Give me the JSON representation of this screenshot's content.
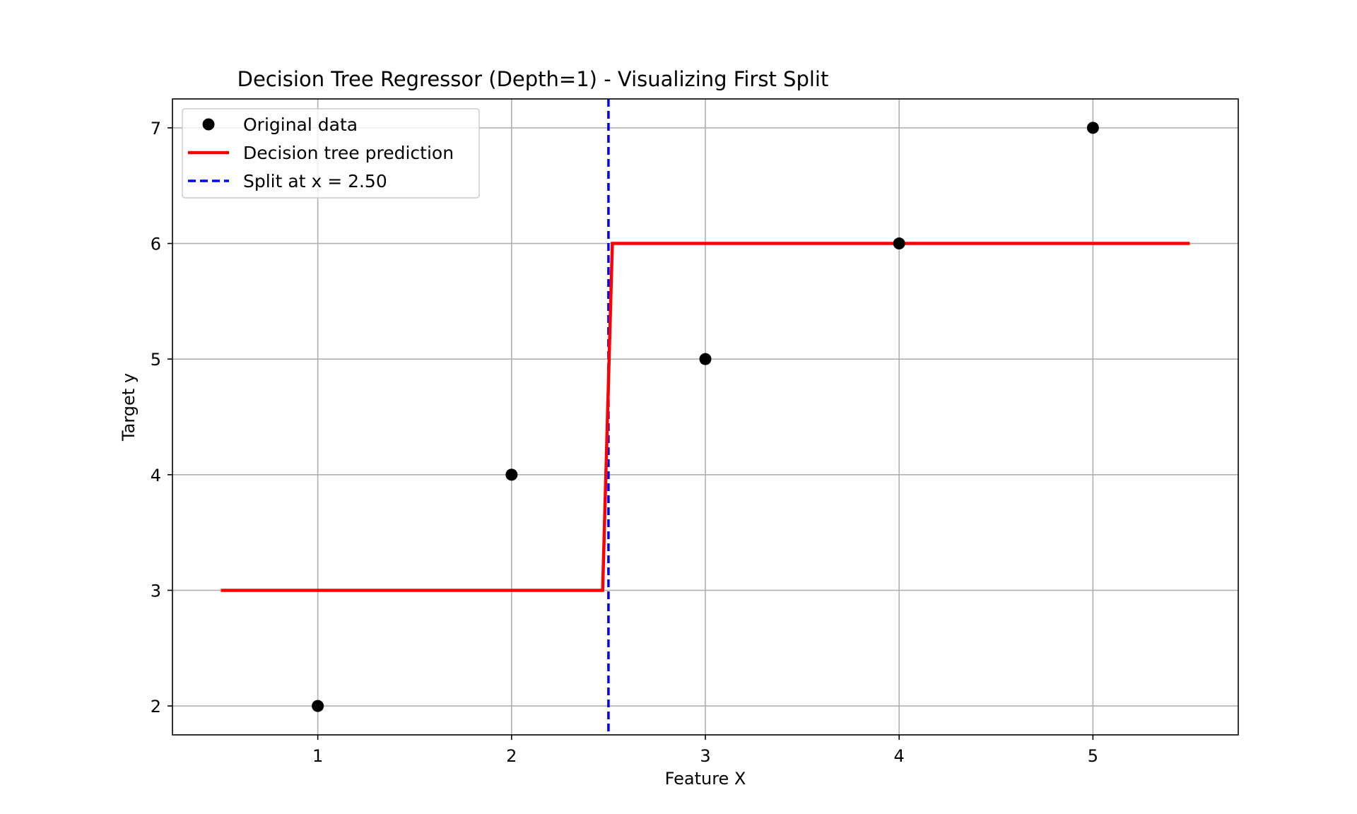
{
  "chart_data": {
    "type": "scatter",
    "title": "Decision Tree Regressor (Depth=1) - Visualizing First Split",
    "xlabel": "Feature X",
    "ylabel": "Target y",
    "xlim": [
      0.25,
      5.75
    ],
    "ylim": [
      1.75,
      7.25
    ],
    "xticks": [
      1,
      2,
      3,
      4,
      5
    ],
    "yticks": [
      2,
      3,
      4,
      5,
      6,
      7
    ],
    "grid": true,
    "legend_position": "top-left",
    "series": [
      {
        "name": "Original data",
        "kind": "scatter",
        "color": "#000000",
        "x": [
          1,
          2,
          3,
          4,
          5
        ],
        "y": [
          2,
          4,
          5,
          6,
          7
        ]
      },
      {
        "name": "Decision tree prediction",
        "kind": "line",
        "color": "#ff0000",
        "x": [
          0.5,
          2.47,
          2.52,
          5.5
        ],
        "y": [
          3,
          3,
          6,
          6
        ]
      },
      {
        "name": "Split at x = 2.50",
        "kind": "vline",
        "color": "#0000ff",
        "x": 2.5
      }
    ]
  }
}
